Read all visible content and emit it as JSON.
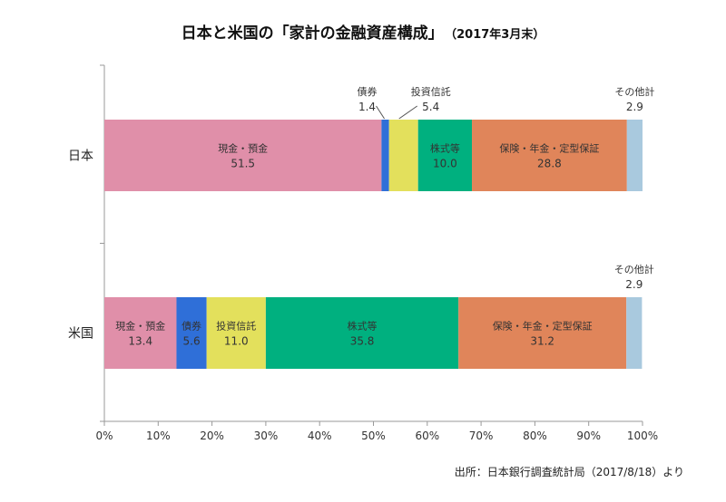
{
  "chart_data": {
    "type": "bar",
    "orientation": "horizontal-stacked-100",
    "title": "日本と米国の「家計の金融資産構成」",
    "subtitle": "（2017年3月末）",
    "source": "出所：日本銀行調査統計局（2017/8/18）より",
    "categories": [
      "日本",
      "米国"
    ],
    "series": [
      {
        "name": "現金・預金",
        "color": "#e08fa9",
        "values": [
          51.5,
          13.4
        ]
      },
      {
        "name": "債券",
        "color": "#2f6fd8",
        "values": [
          1.4,
          5.6
        ]
      },
      {
        "name": "投資信託",
        "color": "#e3e05c",
        "values": [
          5.4,
          11.0
        ]
      },
      {
        "name": "株式等",
        "color": "#00b07f",
        "values": [
          10.0,
          35.8
        ]
      },
      {
        "name": "保険・年金・定型保証",
        "color": "#e0855a",
        "values": [
          28.8,
          31.2
        ]
      },
      {
        "name": "その他計",
        "color": "#a9c9de",
        "values": [
          2.9,
          2.9
        ]
      }
    ],
    "xlim": [
      0,
      100
    ],
    "xticks": [
      "0%",
      "10%",
      "20%",
      "30%",
      "40%",
      "50%",
      "60%",
      "70%",
      "80%",
      "90%",
      "100%"
    ],
    "grid": false,
    "legend": "none"
  }
}
